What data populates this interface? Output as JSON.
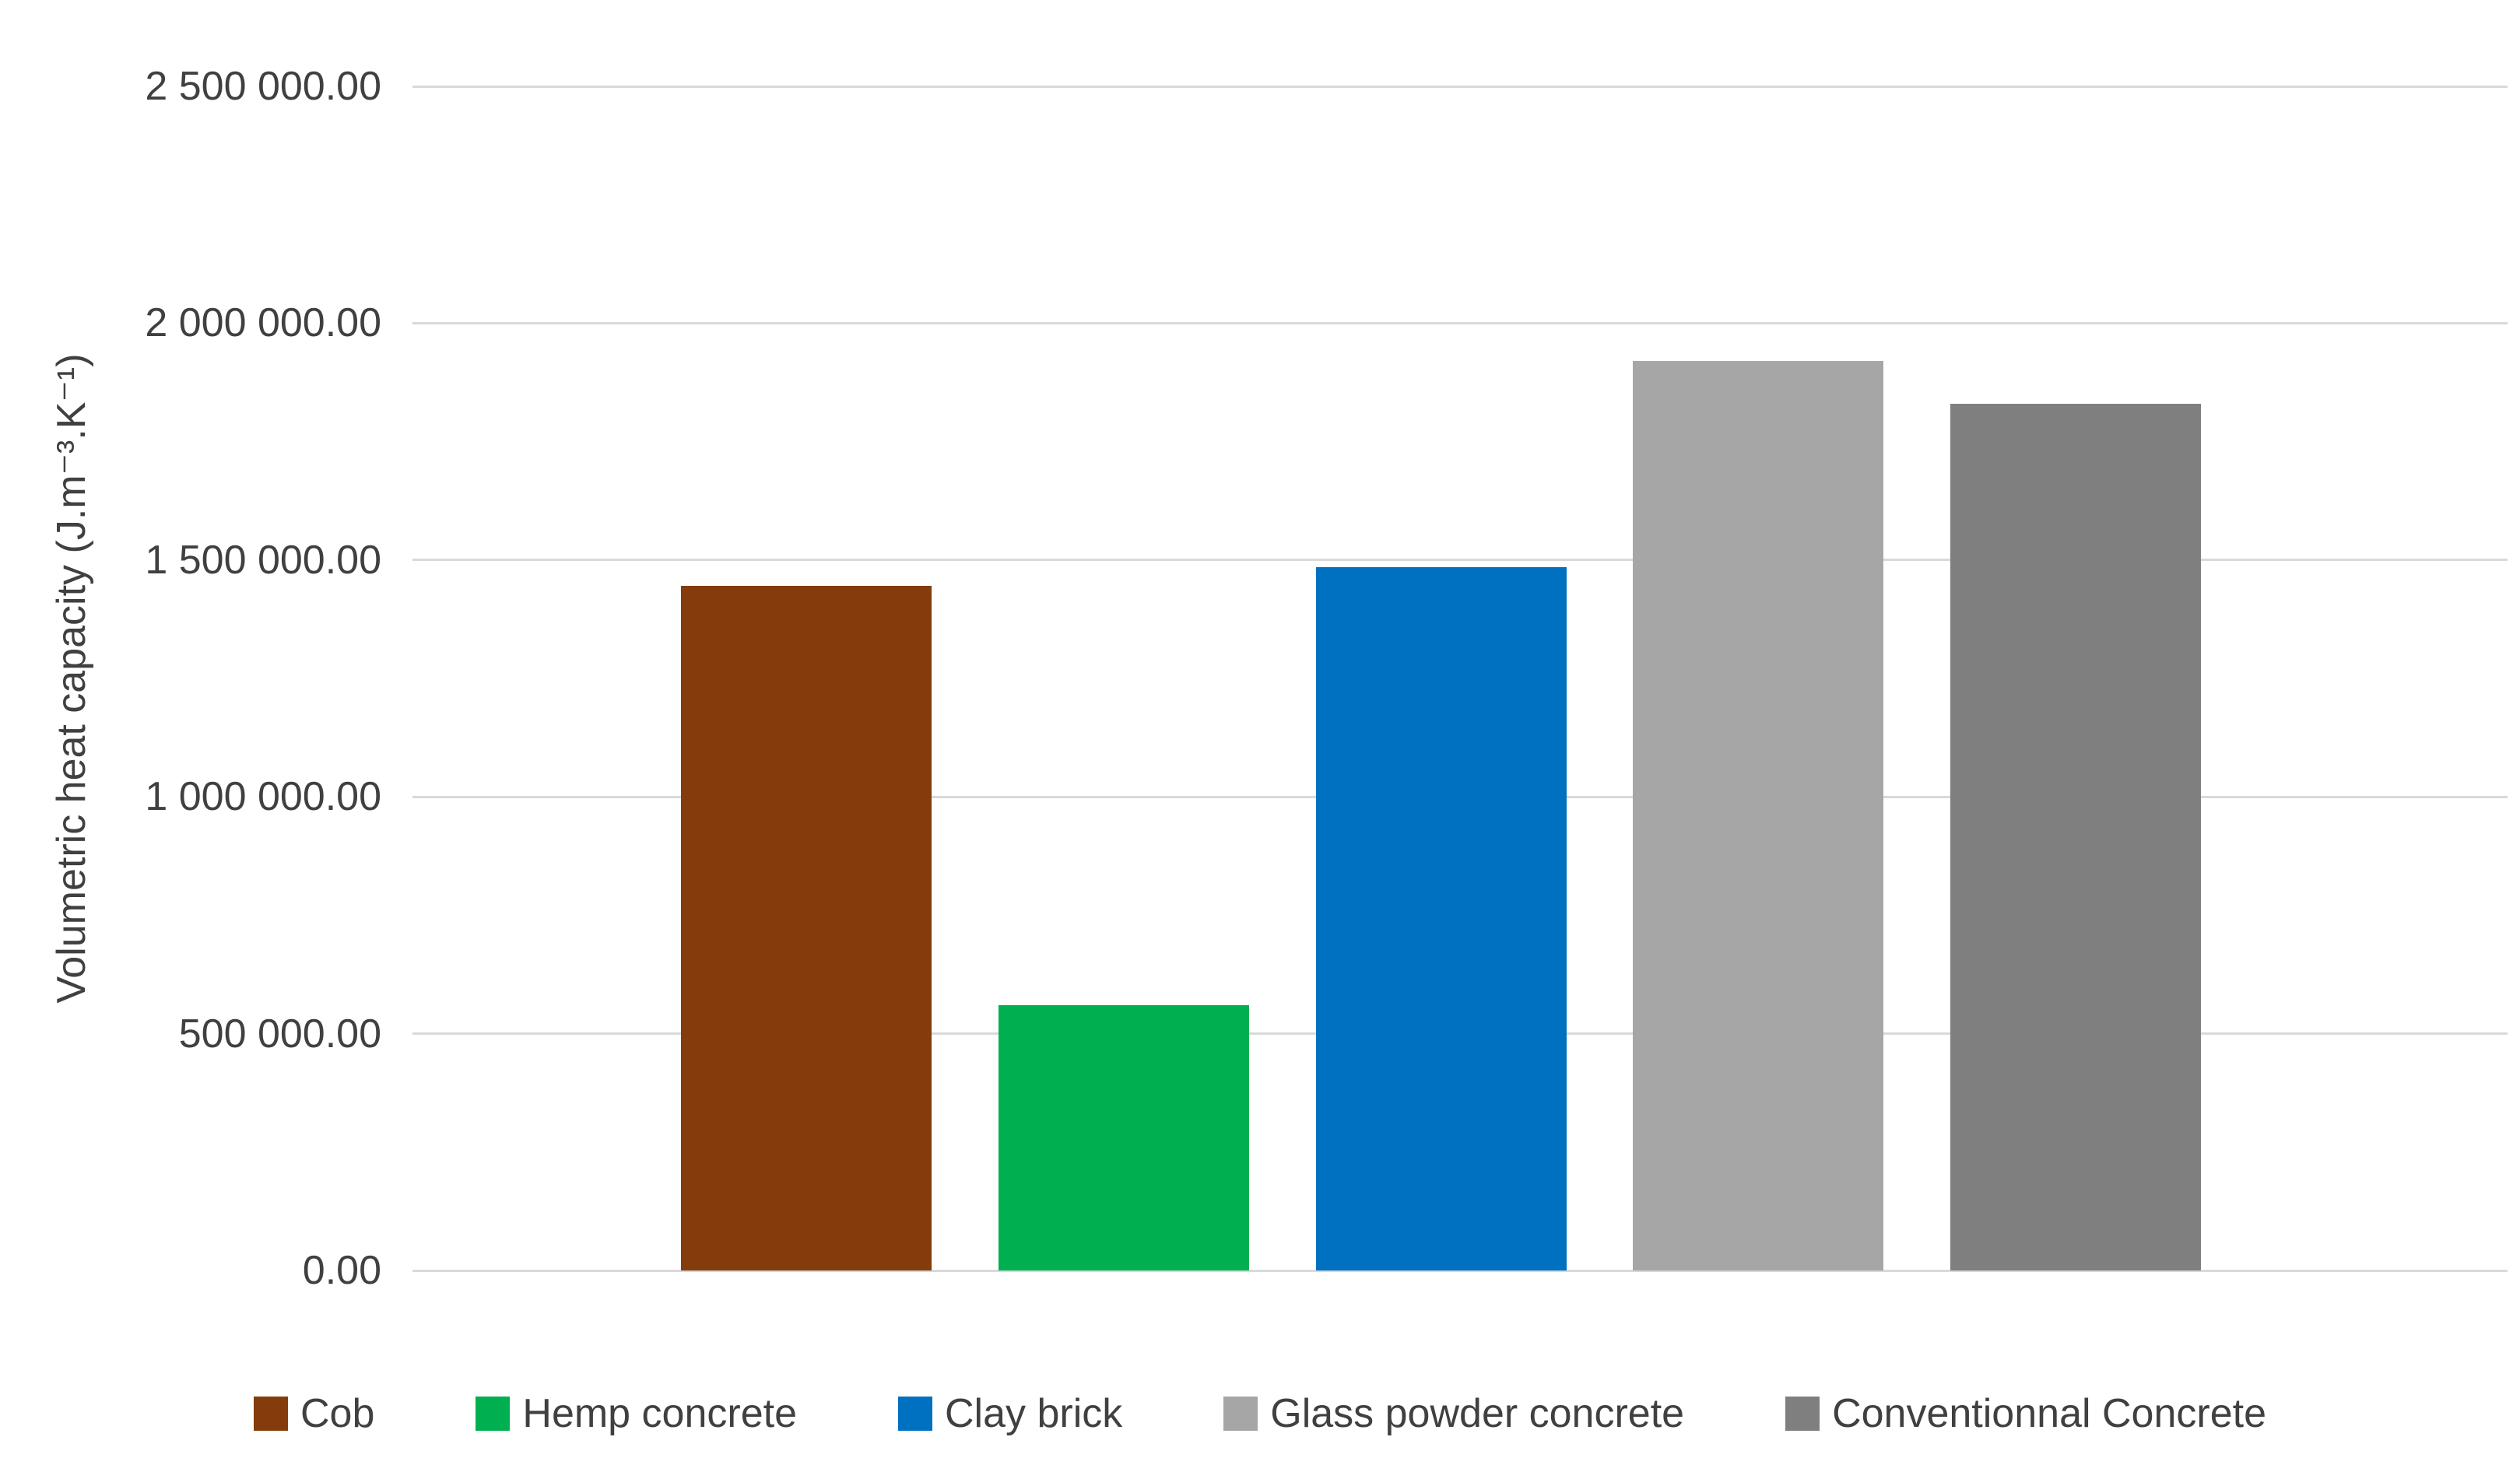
{
  "chart_data": {
    "type": "bar",
    "title": "",
    "categories": [
      "Cob",
      "Hemp concrete",
      "Clay brick",
      "Glass powder concrete",
      "Conventionnal Concrete"
    ],
    "values": [
      1445000,
      560000,
      1485000,
      1920000,
      1830000
    ],
    "colors": [
      "#843C0C",
      "#00B050",
      "#0070C0",
      "#A6A6A6",
      "#7F7F7F"
    ],
    "xlabel": "",
    "ylabel": "Volumetric heat capacity (J.m⁻³.K⁻¹)",
    "ylim": [
      0,
      2500000
    ],
    "ytick_interval": 500000,
    "ytick_labels": [
      "2 500 000.00",
      "2 000 000.00",
      "1 500 000.00",
      "1 000 000.00",
      "500 000.00",
      "0.00"
    ],
    "grid": true,
    "gridline_color": "#D9D9D9",
    "text_color": "#404040",
    "legend_position": "bottom"
  }
}
